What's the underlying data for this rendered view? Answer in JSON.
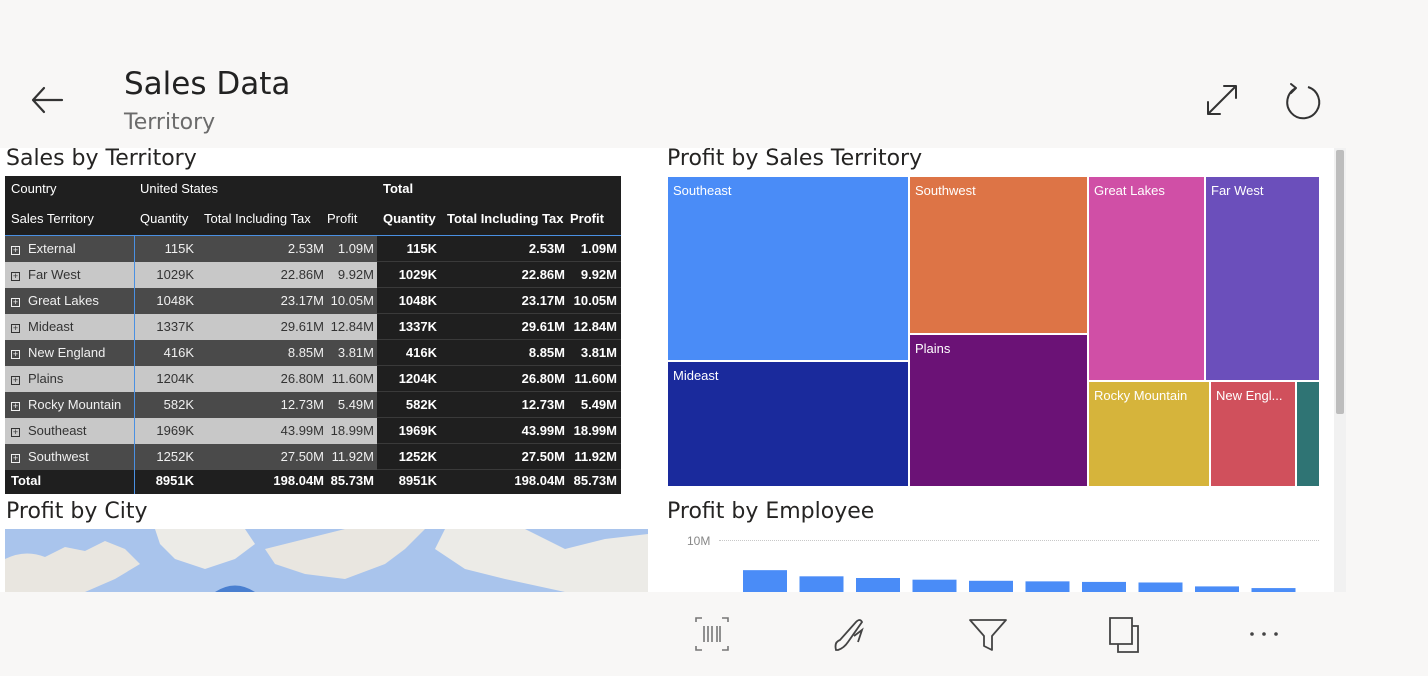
{
  "header": {
    "title": "Sales Data",
    "subtitle": "Territory",
    "icons": [
      "back-arrow-icon",
      "expand-icon",
      "refresh-icon"
    ]
  },
  "visuals": {
    "matrix_title": "Sales by Territory",
    "treemap_title": "Profit by Sales Territory",
    "map_title": "Profit by City",
    "bar_title": "Profit by Employee"
  },
  "matrix": {
    "header_top": {
      "country": "Country",
      "group": "United States",
      "total": "Total"
    },
    "header_cols": {
      "territory": "Sales Territory",
      "quantity": "Quantity",
      "tit": "Total Including Tax",
      "profit": "Profit"
    },
    "rows": [
      {
        "territory": "External",
        "q": "115K",
        "t": "2.53M",
        "p": "1.09M",
        "tq": "115K",
        "tt": "2.53M",
        "tp": "1.09M"
      },
      {
        "territory": "Far West",
        "q": "1029K",
        "t": "22.86M",
        "p": "9.92M",
        "tq": "1029K",
        "tt": "22.86M",
        "tp": "9.92M"
      },
      {
        "territory": "Great Lakes",
        "q": "1048K",
        "t": "23.17M",
        "p": "10.05M",
        "tq": "1048K",
        "tt": "23.17M",
        "tp": "10.05M"
      },
      {
        "territory": "Mideast",
        "q": "1337K",
        "t": "29.61M",
        "p": "12.84M",
        "tq": "1337K",
        "tt": "29.61M",
        "tp": "12.84M"
      },
      {
        "territory": "New England",
        "q": "416K",
        "t": "8.85M",
        "p": "3.81M",
        "tq": "416K",
        "tt": "8.85M",
        "tp": "3.81M"
      },
      {
        "territory": "Plains",
        "q": "1204K",
        "t": "26.80M",
        "p": "11.60M",
        "tq": "1204K",
        "tt": "26.80M",
        "tp": "11.60M"
      },
      {
        "territory": "Rocky Mountain",
        "q": "582K",
        "t": "12.73M",
        "p": "5.49M",
        "tq": "582K",
        "tt": "12.73M",
        "tp": "5.49M"
      },
      {
        "territory": "Southeast",
        "q": "1969K",
        "t": "43.99M",
        "p": "18.99M",
        "tq": "1969K",
        "tt": "43.99M",
        "tp": "18.99M"
      },
      {
        "territory": "Southwest",
        "q": "1252K",
        "t": "27.50M",
        "p": "11.92M",
        "tq": "1252K",
        "tt": "27.50M",
        "tp": "11.92M"
      }
    ],
    "total_row": {
      "label": "Total",
      "q": "8951K",
      "t": "198.04M",
      "p": "85.73M",
      "tq": "8951K",
      "tt": "198.04M",
      "tp": "85.73M"
    },
    "colors": {
      "dark_row": "#4a4a4a",
      "light_row": "#c8c8c8",
      "header_bg": "#1f1f1f",
      "divider": "#4a90e2"
    }
  },
  "treemap": {
    "tiles": [
      {
        "label": "Southeast",
        "color": "#4a8cf7"
      },
      {
        "label": "Southwest",
        "color": "#dd7446"
      },
      {
        "label": "Great Lakes",
        "color": "#d04fa6"
      },
      {
        "label": "Far West",
        "color": "#6b4fbb"
      },
      {
        "label": "Mideast",
        "color": "#1a2a9c"
      },
      {
        "label": "Plains",
        "color": "#6b1276"
      },
      {
        "label": "Rocky Mountain",
        "color": "#d6b43b"
      },
      {
        "label": "New Engl...",
        "color": "#d0505c"
      },
      {
        "label": "",
        "color": "#2f7474"
      }
    ]
  },
  "bar_chart": {
    "y_tick_label": "10M",
    "bar_color": "#4a8cf7",
    "values_fraction": [
      0.78,
      0.56,
      0.5,
      0.44,
      0.4,
      0.38,
      0.36,
      0.34,
      0.2,
      0.14
    ]
  },
  "toolbar": {
    "icons": [
      "barcode-scan-icon",
      "pen-annotate-icon",
      "filter-icon",
      "pages-icon",
      "more-options-icon"
    ]
  }
}
